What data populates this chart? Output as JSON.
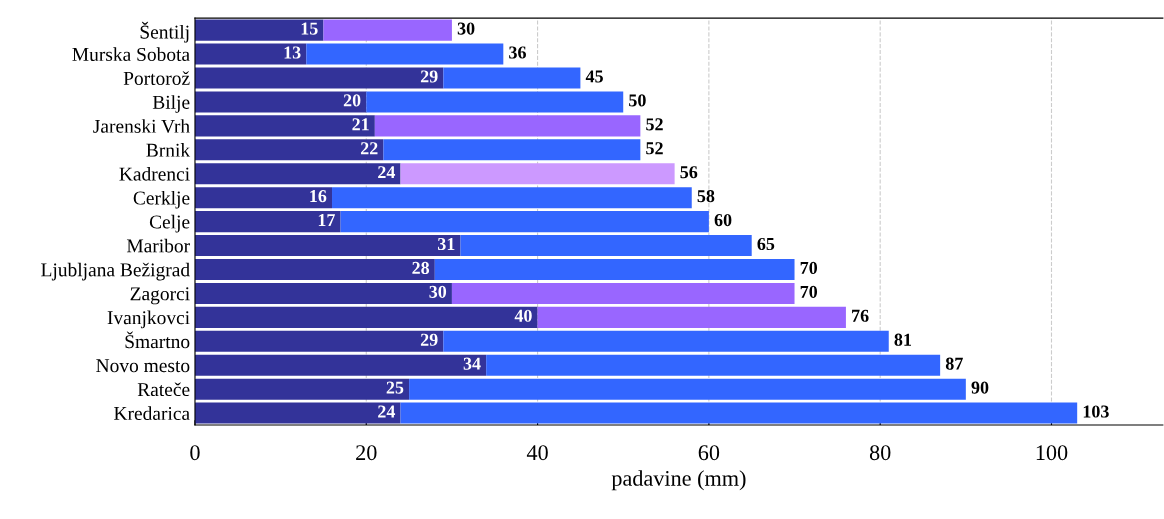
{
  "chart_data": {
    "type": "bar",
    "orientation": "horizontal",
    "stacked": true,
    "xlabel": "padavine (mm)",
    "categories": [
      "Šentilj",
      "Murska Sobota",
      "Portorož",
      "Bilje",
      "Jarenski Vrh",
      "Brnik",
      "Kadrenci",
      "Cerklje",
      "Celje",
      "Maribor",
      "Ljubljana Bežigrad",
      "Zagorci",
      "Ivanjkovci",
      "Šmartno",
      "Novo mesto",
      "Rateče",
      "Kredarica"
    ],
    "series": [
      {
        "values": [
          15,
          13,
          29,
          20,
          21,
          22,
          24,
          16,
          17,
          31,
          28,
          30,
          40,
          29,
          34,
          25,
          24
        ],
        "color": "#333399",
        "value_labels": [
          "15",
          "13",
          "29",
          "20",
          "21",
          "22",
          "24",
          "16",
          "17",
          "31",
          "28",
          "30",
          "40",
          "29",
          "34",
          "25",
          "24"
        ]
      },
      {
        "values": [
          15,
          23,
          16,
          30,
          31,
          30,
          32,
          42,
          43,
          34,
          42,
          40,
          36,
          52,
          53,
          65,
          79
        ],
        "colors": [
          "#9966ff",
          "#3366ff",
          "#3366ff",
          "#3366ff",
          "#9966ff",
          "#3366ff",
          "#cc99ff",
          "#3366ff",
          "#3366ff",
          "#3366ff",
          "#3366ff",
          "#9966ff",
          "#9966ff",
          "#3366ff",
          "#3366ff",
          "#3366ff",
          "#3366ff"
        ]
      }
    ],
    "totals": [
      "30",
      "36",
      "45",
      "50",
      "52",
      "52",
      "56",
      "58",
      "60",
      "65",
      "70",
      "70",
      "76",
      "81",
      "87",
      "90",
      "103"
    ],
    "xlim": [
      0,
      113
    ],
    "xticks": [
      0,
      20,
      40,
      60,
      80,
      100
    ],
    "grid": "x",
    "legend": false
  }
}
